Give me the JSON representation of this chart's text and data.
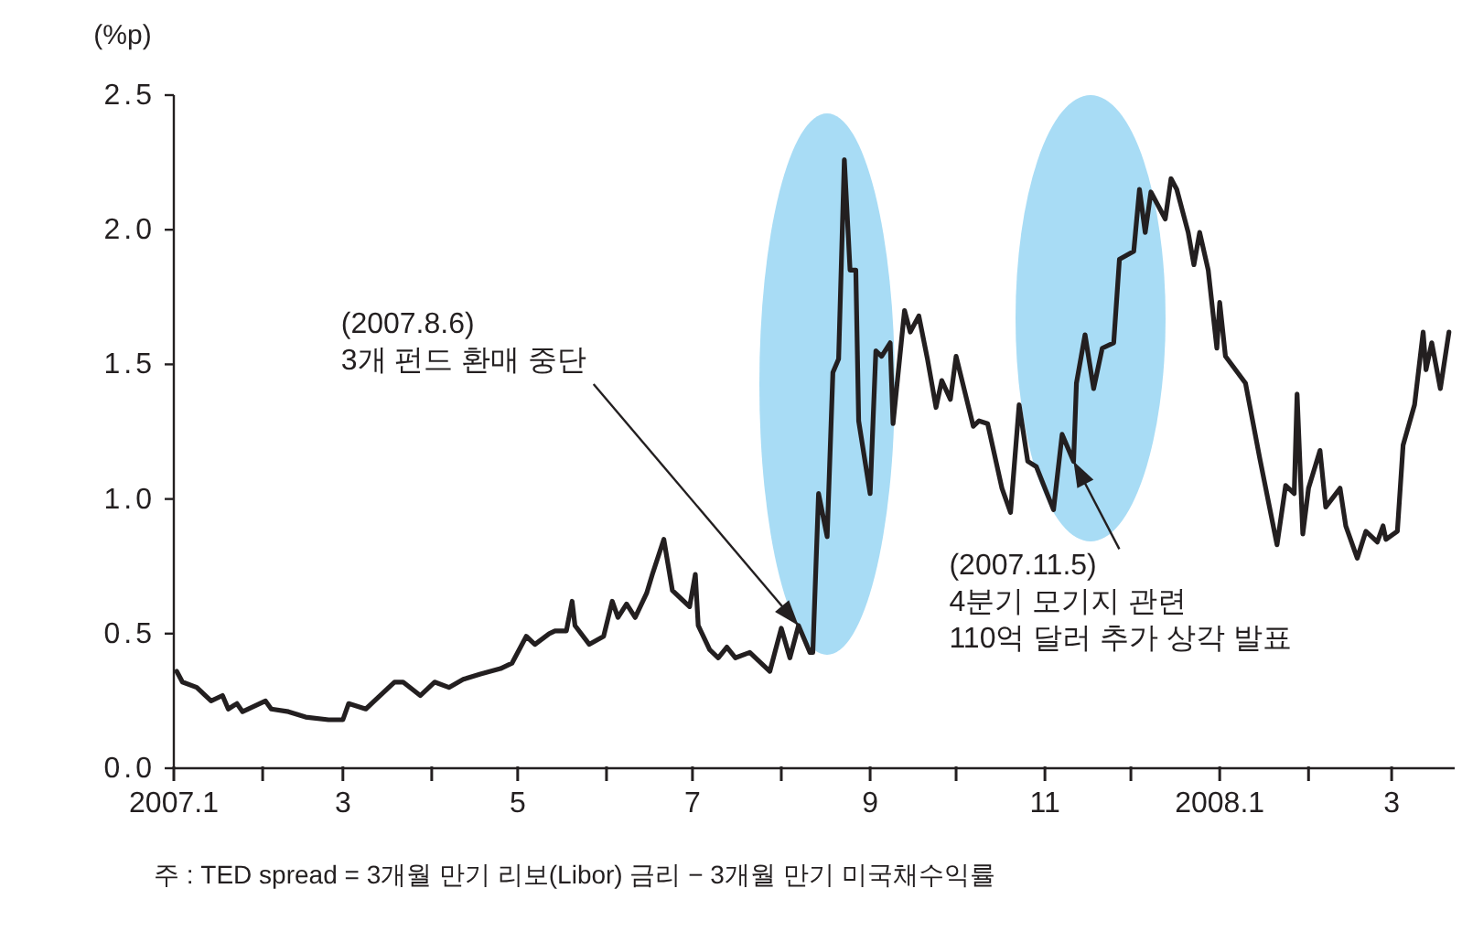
{
  "chart_data": {
    "type": "line",
    "ylabel": "(%p)",
    "x": [
      "2007-01-02",
      "2007-01-04",
      "2007-01-09",
      "2007-01-14",
      "2007-01-18",
      "2007-01-20",
      "2007-01-23",
      "2007-01-25",
      "2007-02-02",
      "2007-02-04",
      "2007-02-10",
      "2007-02-16",
      "2007-02-24",
      "2007-03-01",
      "2007-03-03",
      "2007-03-09",
      "2007-03-12",
      "2007-03-19",
      "2007-03-22",
      "2007-03-28",
      "2007-04-02",
      "2007-04-07",
      "2007-04-12",
      "2007-04-18",
      "2007-04-25",
      "2007-04-29",
      "2007-05-04",
      "2007-05-07",
      "2007-05-12",
      "2007-05-14",
      "2007-05-18",
      "2007-05-20",
      "2007-05-21",
      "2007-05-26",
      "2007-05-31",
      "2007-06-03",
      "2007-06-05",
      "2007-06-08",
      "2007-06-11",
      "2007-06-15",
      "2007-06-17",
      "2007-06-21",
      "2007-06-24",
      "2007-06-27",
      "2007-06-30",
      "2007-07-02",
      "2007-07-03",
      "2007-07-07",
      "2007-07-10",
      "2007-07-13",
      "2007-07-16",
      "2007-07-21",
      "2007-07-28",
      "2007-08-01",
      "2007-08-04",
      "2007-08-07",
      "2007-08-11",
      "2007-08-12",
      "2007-08-14",
      "2007-08-17",
      "2007-08-19",
      "2007-08-21",
      "2007-08-23",
      "2007-08-25",
      "2007-08-27",
      "2007-08-28",
      "2007-09-01",
      "2007-09-03",
      "2007-09-05",
      "2007-09-08",
      "2007-09-09",
      "2007-09-13",
      "2007-09-15",
      "2007-09-18",
      "2007-09-21",
      "2007-09-24",
      "2007-09-26",
      "2007-09-29",
      "2007-10-01",
      "2007-10-07",
      "2007-10-09",
      "2007-10-12",
      "2007-10-17",
      "2007-10-20",
      "2007-10-23",
      "2007-10-26",
      "2007-10-29",
      "2007-11-04",
      "2007-11-07",
      "2007-11-11",
      "2007-11-12",
      "2007-11-15",
      "2007-11-18",
      "2007-11-21",
      "2007-11-25",
      "2007-11-27",
      "2007-12-02",
      "2007-12-04",
      "2007-12-06",
      "2007-12-08",
      "2007-12-13",
      "2007-12-15",
      "2007-12-17",
      "2007-12-21",
      "2007-12-23",
      "2007-12-25",
      "2007-12-28",
      "2007-12-31",
      "2008-01-01",
      "2008-01-03",
      "2008-01-10",
      "2008-01-15",
      "2008-01-21",
      "2008-01-24",
      "2008-01-27",
      "2008-01-28",
      "2008-01-30",
      "2008-02-01",
      "2008-02-05",
      "2008-02-07",
      "2008-02-12",
      "2008-02-14",
      "2008-02-18",
      "2008-02-21",
      "2008-02-25",
      "2008-02-27",
      "2008-02-28",
      "2008-03-03",
      "2008-03-05",
      "2008-03-09",
      "2008-03-12",
      "2008-03-13",
      "2008-03-15",
      "2008-03-18",
      "2008-03-21"
    ],
    "series": [
      {
        "color": "#231f20",
        "values": [
          0.36,
          0.32,
          0.3,
          0.25,
          0.27,
          0.22,
          0.24,
          0.21,
          0.25,
          0.22,
          0.21,
          0.19,
          0.18,
          0.18,
          0.24,
          0.22,
          0.25,
          0.32,
          0.32,
          0.27,
          0.32,
          0.3,
          0.33,
          0.35,
          0.37,
          0.39,
          0.49,
          0.46,
          0.5,
          0.51,
          0.51,
          0.62,
          0.53,
          0.46,
          0.49,
          0.62,
          0.56,
          0.61,
          0.56,
          0.65,
          0.72,
          0.85,
          0.66,
          0.63,
          0.6,
          0.72,
          0.53,
          0.44,
          0.41,
          0.45,
          0.41,
          0.43,
          0.36,
          0.52,
          0.41,
          0.53,
          0.43,
          0.43,
          1.02,
          0.86,
          1.47,
          1.52,
          2.26,
          1.85,
          1.85,
          1.29,
          1.02,
          1.55,
          1.53,
          1.58,
          1.28,
          1.7,
          1.62,
          1.68,
          1.52,
          1.34,
          1.44,
          1.37,
          1.53,
          1.27,
          1.29,
          1.28,
          1.04,
          0.95,
          1.35,
          1.14,
          1.12,
          0.96,
          1.24,
          1.14,
          1.43,
          1.61,
          1.41,
          1.56,
          1.58,
          1.89,
          1.92,
          2.15,
          1.99,
          2.14,
          2.04,
          2.19,
          2.15,
          1.99,
          1.87,
          1.99,
          1.85,
          1.56,
          1.73,
          1.53,
          1.43,
          1.15,
          0.83,
          1.05,
          1.02,
          1.39,
          0.87,
          1.04,
          1.18,
          0.97,
          1.04,
          0.9,
          0.78,
          0.88,
          0.84,
          0.9,
          0.85,
          0.88,
          1.2,
          1.35,
          1.62,
          1.48,
          1.58,
          1.41,
          1.62
        ]
      }
    ],
    "xlim": [
      "2007-01-01",
      "2008-03-23"
    ],
    "xticks": [
      {
        "value": "2007-01-01",
        "label": "2007.1"
      },
      {
        "value": "2007-02-01",
        "label": null
      },
      {
        "value": "2007-03-01",
        "label": "3"
      },
      {
        "value": "2007-04-01",
        "label": null
      },
      {
        "value": "2007-05-01",
        "label": "5"
      },
      {
        "value": "2007-06-01",
        "label": null
      },
      {
        "value": "2007-07-01",
        "label": "7"
      },
      {
        "value": "2007-08-01",
        "label": null
      },
      {
        "value": "2007-09-01",
        "label": "9"
      },
      {
        "value": "2007-10-01",
        "label": null
      },
      {
        "value": "2007-11-01",
        "label": "11"
      },
      {
        "value": "2007-12-01",
        "label": null
      },
      {
        "value": "2008-01-01",
        "label": "2008.1"
      },
      {
        "value": "2008-02-01",
        "label": null
      },
      {
        "value": "2008-03-01",
        "label": "3"
      }
    ],
    "ylim": [
      0,
      2.5
    ],
    "yticks": [
      {
        "value": 0,
        "label": "0.0"
      },
      0.5,
      {
        "value": 1,
        "label": "1.0"
      },
      1.5,
      {
        "value": 2,
        "label": "2.0"
      },
      2.5
    ],
    "annotations": [
      {
        "text": "(2007.8.6)\n3개 펀드 환매 중단",
        "x": "2007-08-07",
        "y": 0.53
      },
      {
        "text": "(2007.11.5)\n4분기 모기지 관련\n110억 달러 추가 상각 발표",
        "x": "2007-11-11",
        "y": 1.14
      },
      "주 : TED spread = 3개월 만기 리보(Libor) 금리 − 3개월 만기 미국채수익률"
    ]
  }
}
